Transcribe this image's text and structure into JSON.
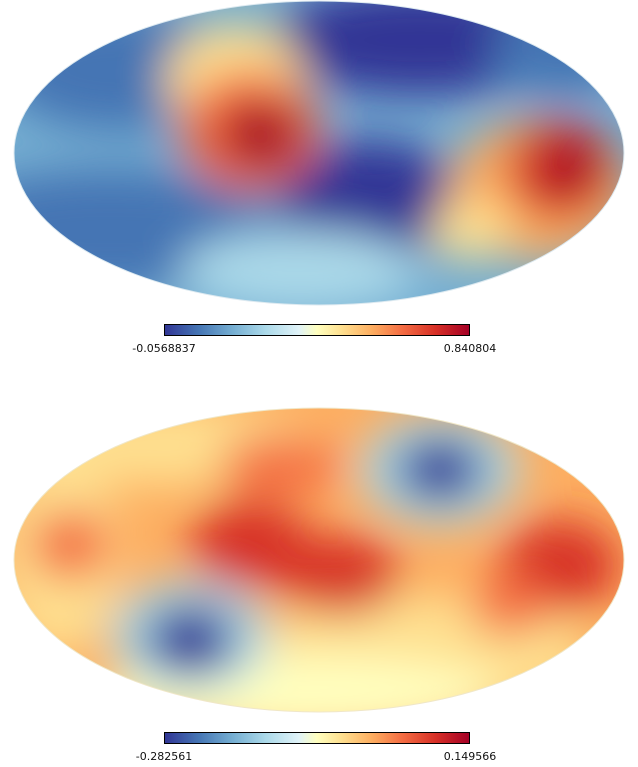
{
  "maps": [
    {
      "colorbar": {
        "min_label": "-0.0568837",
        "max_label": "0.840804"
      },
      "colormap": [
        "#313695",
        "#4575b4",
        "#74add1",
        "#abd9e9",
        "#e0f3f8",
        "#ffffbf",
        "#fee090",
        "#fdae61",
        "#f46d43",
        "#d73027",
        "#a50026"
      ]
    },
    {
      "colorbar": {
        "min_label": "-0.282561",
        "max_label": "0.149566"
      },
      "colormap": [
        "#313695",
        "#4575b4",
        "#74add1",
        "#abd9e9",
        "#e0f3f8",
        "#ffffbf",
        "#fee090",
        "#fdae61",
        "#f46d43",
        "#d73027",
        "#a50026"
      ]
    }
  ]
}
